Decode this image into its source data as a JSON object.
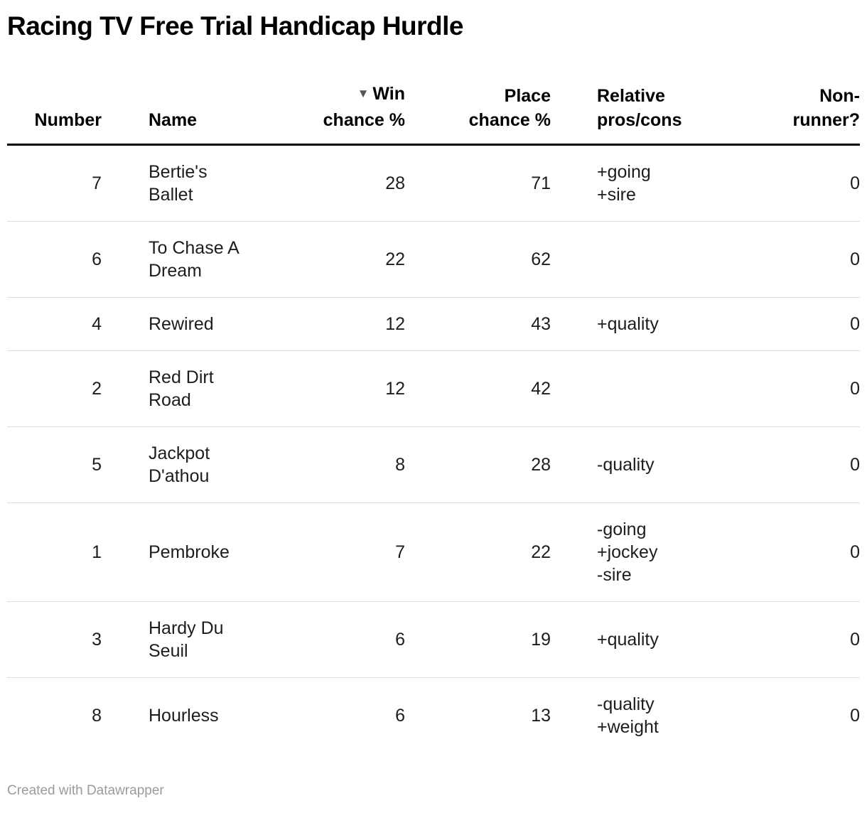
{
  "title": "Racing TV Free Trial Handicap Hurdle",
  "headers": {
    "number_line1": "Number",
    "name_line1": "Name",
    "win_sort_icon": "▼",
    "win_line1": "Win",
    "win_line2": "chance %",
    "place_line1": "Place",
    "place_line2": "chance %",
    "pros_line1": "Relative",
    "pros_line2": "pros/cons",
    "non_line1": "Non-",
    "non_line2": "runner?"
  },
  "chart_data": {
    "type": "table",
    "title": "Racing TV Free Trial Handicap Hurdle",
    "columns": [
      "Number",
      "Name",
      "Win chance %",
      "Place chance %",
      "Relative pros/cons",
      "Non-runner?"
    ],
    "sort": {
      "column": "Win chance %",
      "order": "descending"
    },
    "rows": [
      {
        "number": 7,
        "name": "Bertie's Ballet",
        "win_chance_pct": 28,
        "place_chance_pct": 71,
        "relative_pros_cons": "+going\n+sire",
        "non_runner": 0
      },
      {
        "number": 6,
        "name": "To Chase A Dream",
        "win_chance_pct": 22,
        "place_chance_pct": 62,
        "relative_pros_cons": "",
        "non_runner": 0
      },
      {
        "number": 4,
        "name": "Rewired",
        "win_chance_pct": 12,
        "place_chance_pct": 43,
        "relative_pros_cons": "+quality",
        "non_runner": 0
      },
      {
        "number": 2,
        "name": "Red Dirt Road",
        "win_chance_pct": 12,
        "place_chance_pct": 42,
        "relative_pros_cons": "",
        "non_runner": 0
      },
      {
        "number": 5,
        "name": "Jackpot D'athou",
        "win_chance_pct": 8,
        "place_chance_pct": 28,
        "relative_pros_cons": "-quality",
        "non_runner": 0
      },
      {
        "number": 1,
        "name": "Pembroke",
        "win_chance_pct": 7,
        "place_chance_pct": 22,
        "relative_pros_cons": "-going\n+jockey\n-sire",
        "non_runner": 0
      },
      {
        "number": 3,
        "name": "Hardy Du Seuil",
        "win_chance_pct": 6,
        "place_chance_pct": 19,
        "relative_pros_cons": "+quality",
        "non_runner": 0
      },
      {
        "number": 8,
        "name": "Hourless",
        "win_chance_pct": 6,
        "place_chance_pct": 13,
        "relative_pros_cons": "-quality\n+weight",
        "non_runner": 0
      }
    ]
  },
  "colors": {
    "header_border": "#000000",
    "row_divider": "#dddddd",
    "footer_text": "#9b9b9b"
  },
  "footer": {
    "credit": "Created with Datawrapper"
  }
}
